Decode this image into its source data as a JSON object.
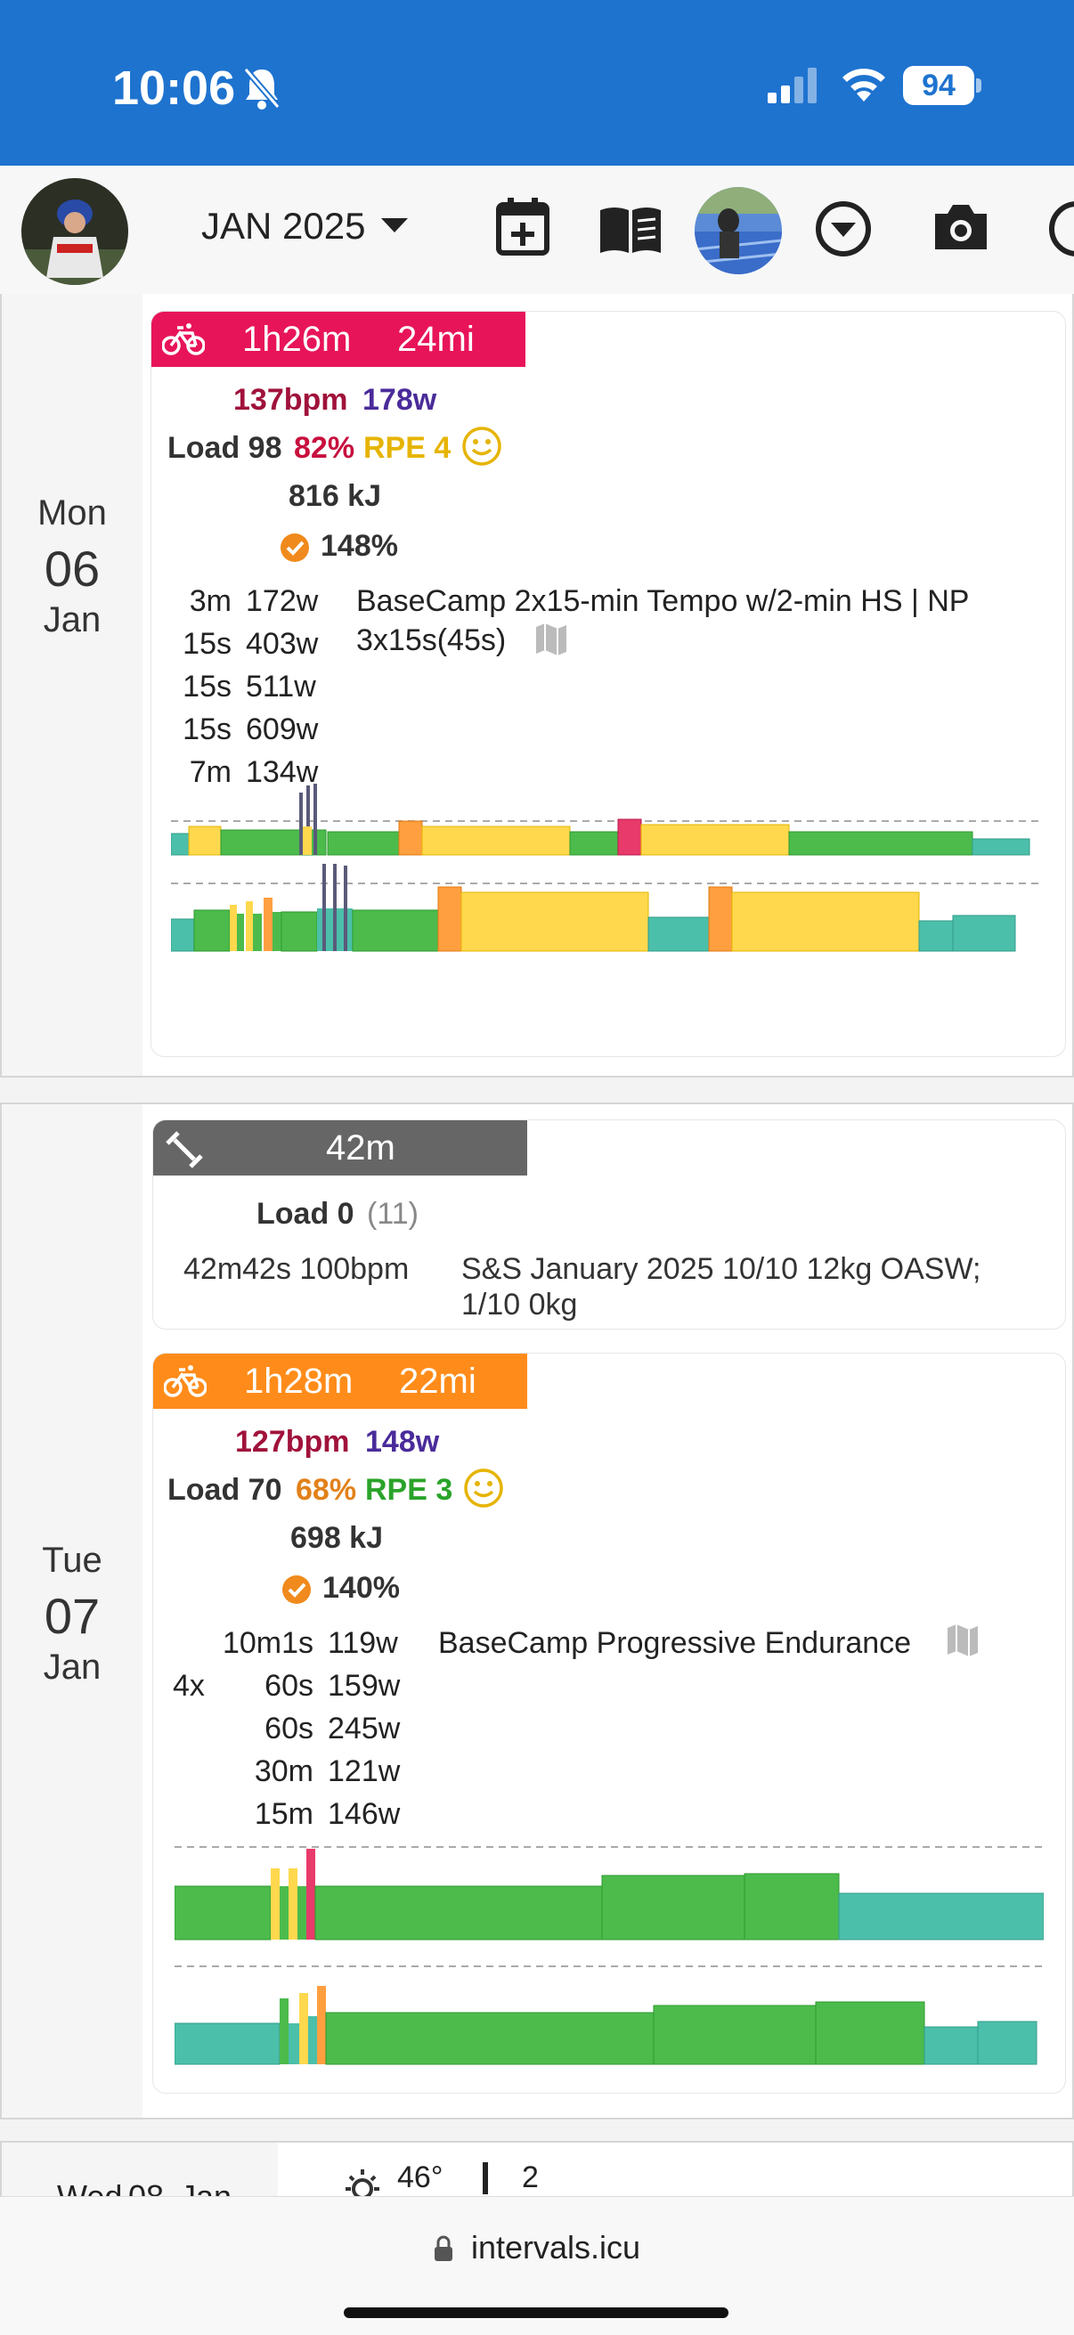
{
  "status": {
    "time": "10:06",
    "battery": "94"
  },
  "toolbar": {
    "month": "JAN 2025"
  },
  "colors": {
    "accent": "#1e73cf",
    "ride_hr": "#a0123b",
    "power": "#4a2b9a",
    "z2": "#4cbb4c",
    "z3": "#ffd84d",
    "z4": "#ff9f40",
    "z5": "#e83a6b",
    "z1": "#4cbfaa"
  },
  "days": [
    {
      "weekday": "Mon",
      "date": "06",
      "month": "Jan",
      "activities": [
        {
          "type": "ride",
          "duration": "1h26m",
          "distance": "24mi",
          "hr": "137bpm",
          "power": "178w",
          "load_label": "Load 98",
          "intensity": "82%",
          "rpe": "RPE 4",
          "energy": "816 kJ",
          "compliance": "148%",
          "intervals": [
            {
              "dur": "3m",
              "watts": "172w"
            },
            {
              "dur": "15s",
              "watts": "403w"
            },
            {
              "dur": "15s",
              "watts": "511w"
            },
            {
              "dur": "15s",
              "watts": "609w"
            },
            {
              "dur": "7m",
              "watts": "134w"
            }
          ],
          "name_line1": "BaseCamp 2x15-min Tempo w/2-min HS | NP",
          "name_line2": "3x15s(45s)"
        }
      ]
    },
    {
      "weekday": "Tue",
      "date": "07",
      "month": "Jan",
      "activities": [
        {
          "type": "strength",
          "duration": "42m",
          "load_label": "Load 0",
          "load_extra": "(11)",
          "stats": "42m42s 100bpm",
          "name_line1": "S&S January 2025 10/10 12kg OASW;",
          "name_line2": "1/10 0kg"
        },
        {
          "type": "ride",
          "duration": "1h28m",
          "distance": "22mi",
          "hr": "127bpm",
          "power": "148w",
          "load_label": "Load 70",
          "intensity": "68%",
          "rpe": "RPE 3",
          "energy": "698 kJ",
          "compliance": "140%",
          "repeat": "4x",
          "intervals": [
            {
              "dur": "10m1s",
              "watts": "119w"
            },
            {
              "dur": "60s",
              "watts": "159w"
            },
            {
              "dur": "60s",
              "watts": "245w"
            },
            {
              "dur": "30m",
              "watts": "121w"
            },
            {
              "dur": "15m",
              "watts": "146w"
            }
          ],
          "name_line1": "BaseCamp Progressive Endurance"
        }
      ]
    },
    {
      "weekday": "Wed",
      "date": "08",
      "month": "Jan",
      "weather_temp": "46°",
      "weather_extra": "2"
    }
  ],
  "browser": {
    "url": "intervals.icu"
  }
}
